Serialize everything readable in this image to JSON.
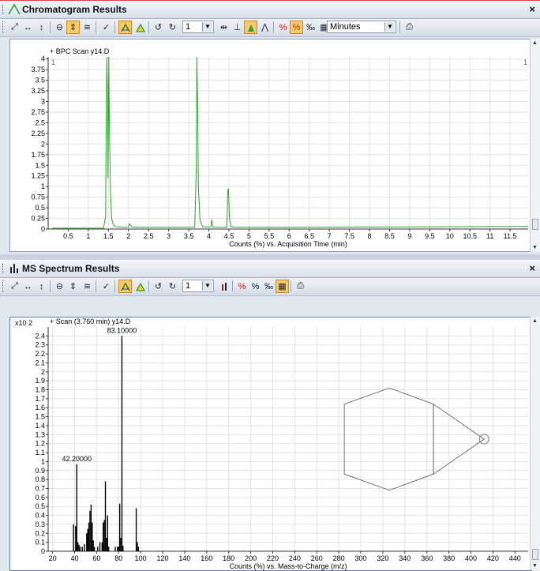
{
  "colors": {
    "accent_active": "#f8c96a",
    "chromatogram_line": "#2ea02e",
    "spectrum_bar": "#000000",
    "grid": "#e2e2e2"
  },
  "top_panel": {
    "title": "Chromatogram Results",
    "title_icon": "chromatogram-icon",
    "close_label": "×",
    "toolbar": {
      "counter_value": "1",
      "units_value": "Minutes"
    },
    "chart_data": {
      "type": "line",
      "title": "+ BPC Scan y14.D",
      "xlabel": "Counts (%) vs. Acquisition Time (min)",
      "ylabel": "",
      "y_multiplier_label": "",
      "xlim": [
        0,
        11.95
      ],
      "ylim": [
        0,
        4.05
      ],
      "x_ticks": [
        0.5,
        1,
        1.5,
        2,
        2.5,
        3,
        3.5,
        4,
        4.5,
        5,
        5.5,
        6,
        6.5,
        7,
        7.5,
        8,
        8.5,
        9,
        9.5,
        10,
        10.5,
        11,
        11.5
      ],
      "x_tick_labels": [
        "0.5",
        "1",
        "1.5",
        "2",
        "2.5",
        "3",
        "3.5",
        "4",
        "4.5",
        "5",
        "5.5",
        "6",
        "6.5",
        "7",
        "7.5",
        "8",
        "8.5",
        "9",
        "9.5",
        "10",
        "10.5",
        "11",
        "11.5"
      ],
      "y_ticks": [
        0,
        0.25,
        0.5,
        0.75,
        1,
        1.25,
        1.5,
        1.75,
        2,
        2.25,
        2.5,
        2.75,
        3,
        3.25,
        3.5,
        3.75,
        4
      ],
      "y_tick_labels": [
        "0",
        "0.25",
        "0.5",
        "0.75",
        "1",
        "1.25",
        "1.5",
        "1.75",
        "2",
        "2.25",
        "2.5",
        "2.75",
        "3",
        "3.25",
        "3.5",
        "3.75",
        "4"
      ],
      "corner_left": "1",
      "corner_right": "1",
      "series": [
        {
          "x": [
            0.1,
            1.38,
            1.43,
            1.44,
            1.46,
            1.48,
            1.49,
            1.5,
            1.51,
            1.52,
            1.54,
            1.55,
            1.58,
            1.62,
            1.7,
            1.9,
            2.0,
            2.02,
            2.1,
            3.2,
            3.65,
            3.69,
            3.7,
            3.72,
            3.74,
            3.78,
            3.85,
            4.05,
            4.07,
            4.09,
            4.11,
            4.3,
            4.45,
            4.47,
            4.49,
            4.51,
            4.55,
            4.7,
            6.5,
            11.95
          ],
          "y": [
            0.02,
            0.02,
            0.3,
            2.0,
            4.1,
            3.0,
            1.2,
            2.5,
            4.1,
            2.8,
            1.5,
            0.9,
            0.25,
            0.1,
            0.05,
            0.04,
            0.04,
            0.12,
            0.04,
            0.04,
            0.04,
            1.5,
            4.1,
            3.0,
            1.0,
            0.2,
            0.05,
            0.05,
            0.22,
            0.1,
            0.04,
            0.04,
            0.04,
            0.9,
            0.95,
            0.3,
            0.05,
            0.04,
            0.04,
            0.06
          ]
        }
      ]
    }
  },
  "bottom_panel": {
    "title": "MS Spectrum Results",
    "title_icon": "spectrum-icon",
    "close_label": "×",
    "toolbar": {
      "counter_value": "1"
    },
    "chart_data": {
      "type": "bar",
      "title": "+ Scan (3.760 min) y14.D",
      "xlabel": "Counts (%) vs. Mass-to-Charge (m/z)",
      "ylabel": "",
      "y_multiplier_label": "x10 2",
      "xlim": [
        16,
        452
      ],
      "ylim": [
        0,
        2.5
      ],
      "x_ticks": [
        20,
        40,
        60,
        80,
        100,
        120,
        140,
        160,
        180,
        200,
        220,
        240,
        260,
        280,
        300,
        320,
        340,
        360,
        380,
        400,
        420,
        440
      ],
      "x_tick_labels": [
        "20",
        "40",
        "60",
        "80",
        "100",
        "120",
        "140",
        "160",
        "180",
        "200",
        "220",
        "240",
        "260",
        "280",
        "300",
        "320",
        "340",
        "360",
        "380",
        "400",
        "420",
        "440"
      ],
      "y_ticks": [
        0,
        0.1,
        0.2,
        0.3,
        0.4,
        0.5,
        0.6,
        0.7,
        0.8,
        0.9,
        1,
        1.1,
        1.2,
        1.3,
        1.4,
        1.5,
        1.6,
        1.7,
        1.8,
        1.9,
        2,
        2.1,
        2.2,
        2.3,
        2.4
      ],
      "y_tick_labels": [
        "0",
        "0.1",
        "0.2",
        "0.3",
        "0.4",
        "0.5",
        "0.6",
        "0.7",
        "0.8",
        "0.9",
        "1",
        "1.1",
        "1.2",
        "1.3",
        "1.4",
        "1.5",
        "1.6",
        "1.7",
        "1.8",
        "1.9",
        "2",
        "2.1",
        "2.2",
        "2.3",
        "2.4"
      ],
      "x": [
        39,
        41,
        42,
        43,
        44,
        45,
        47,
        49,
        51,
        52,
        53,
        54,
        55,
        56,
        57,
        58,
        61,
        63,
        65,
        66,
        67,
        68,
        69,
        70,
        71,
        77,
        79,
        80,
        81,
        82,
        83,
        84,
        96,
        97,
        98
      ],
      "values": [
        0.3,
        0.28,
        0.97,
        0.1,
        0.07,
        0.05,
        0.05,
        0.08,
        0.2,
        0.25,
        0.32,
        0.45,
        0.52,
        0.32,
        0.12,
        0.05,
        0.05,
        0.1,
        0.1,
        0.32,
        0.35,
        0.78,
        0.15,
        0.4,
        0.05,
        0.05,
        0.05,
        0.05,
        0.53,
        0.15,
        2.4,
        0.06,
        0.48,
        0.1,
        0.05
      ],
      "peak_labels": [
        {
          "x": 42,
          "y": 0.97,
          "text": "42.20000"
        },
        {
          "x": 83,
          "y": 2.4,
          "text": "83.10000"
        }
      ],
      "structure": {
        "hex": [
          [
            326,
            1.82
          ],
          [
            366,
            1.64
          ],
          [
            366,
            0.86
          ],
          [
            326,
            0.68
          ],
          [
            285,
            0.86
          ],
          [
            285,
            1.64
          ]
        ],
        "divider": [
          [
            366,
            1.64
          ],
          [
            366,
            0.86
          ]
        ],
        "wedge": [
          [
            366,
            1.64
          ],
          [
            412,
            1.25
          ],
          [
            366,
            0.86
          ]
        ],
        "atom": [
          412,
          1.25
        ]
      }
    }
  }
}
